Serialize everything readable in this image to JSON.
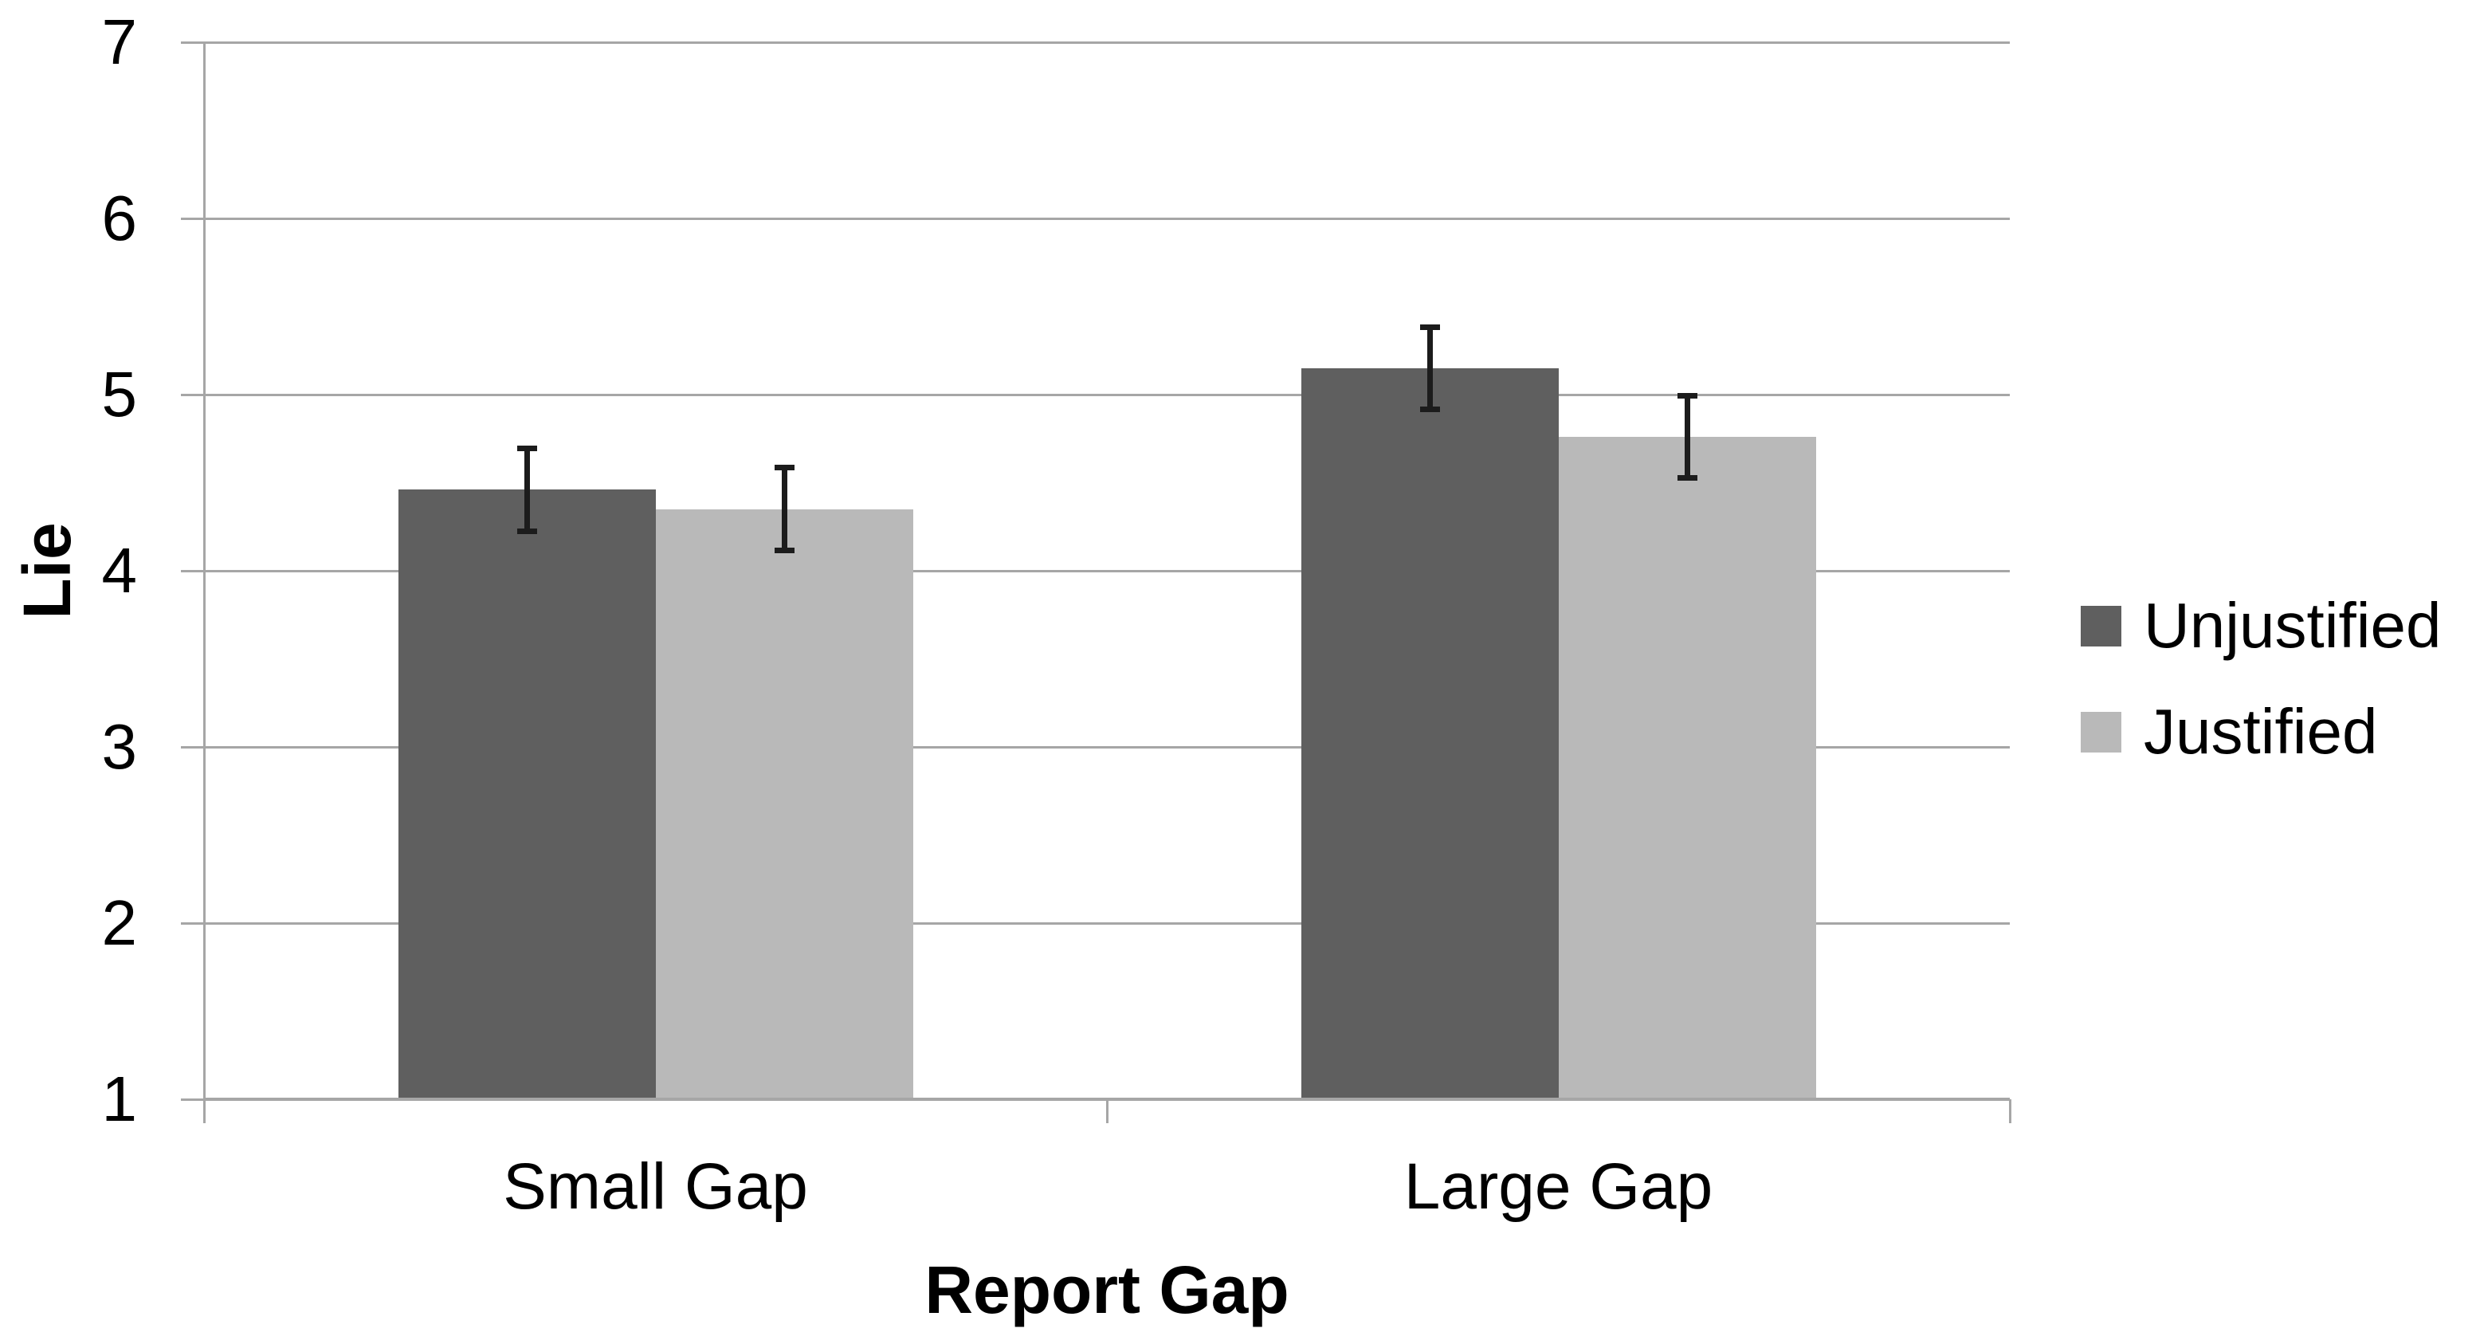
{
  "chart_data": {
    "type": "bar",
    "categories": [
      "Small Gap",
      "Large Gap"
    ],
    "series": [
      {
        "name": "Unjustified",
        "color": "#5f5f5f",
        "values": [
          4.46,
          5.15
        ],
        "error_plus": [
          0.25,
          0.25
        ],
        "error_minus": [
          0.25,
          0.25
        ]
      },
      {
        "name": "Justified",
        "color": "#b9b9b9",
        "values": [
          4.35,
          4.76
        ],
        "error_plus": [
          0.25,
          0.25
        ],
        "error_minus": [
          0.25,
          0.25
        ]
      }
    ],
    "xlabel": "Report Gap",
    "ylabel": "Lie",
    "ylim": [
      1,
      7
    ],
    "yticks": [
      1,
      2,
      3,
      4,
      5,
      6,
      7
    ],
    "grid": true,
    "legend_position": "right",
    "error_bars": true,
    "colors": {
      "grid": "#a6a6a6",
      "axis": "#a6a6a6",
      "error": "#1c1c1c",
      "text": "#000000",
      "background": "#ffffff"
    }
  }
}
